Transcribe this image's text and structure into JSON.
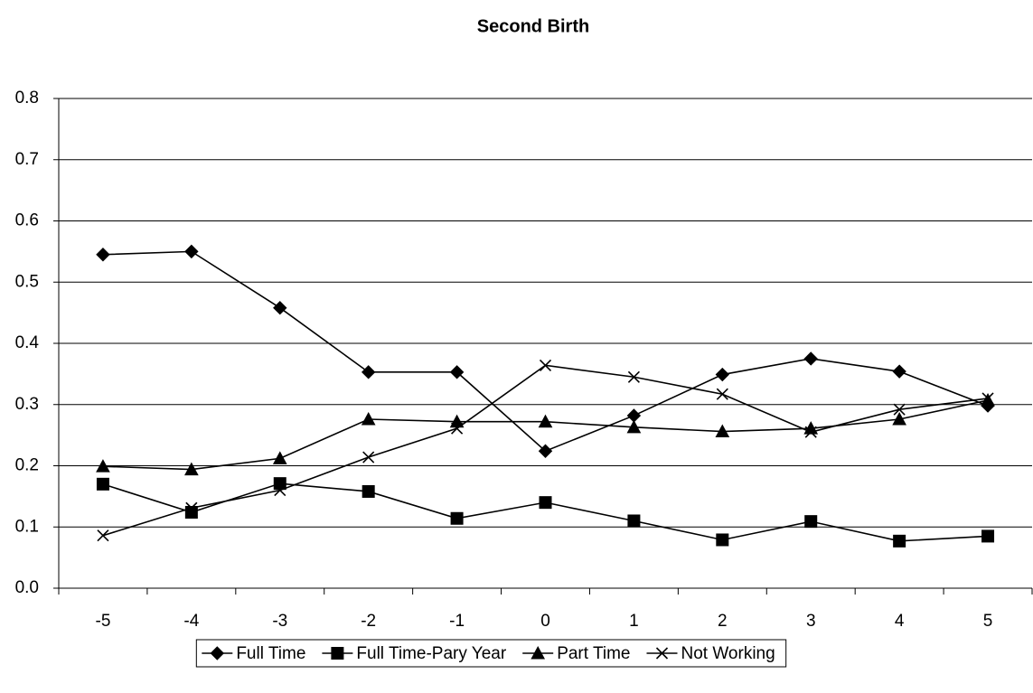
{
  "chart_data": {
    "type": "line",
    "title": "Second Birth",
    "categories": [
      "-5",
      "-4",
      "-3",
      "-2",
      "-1",
      "0",
      "1",
      "2",
      "3",
      "4",
      "5"
    ],
    "series": [
      {
        "name": "Full Time",
        "color": "#000000",
        "marker": "diamond",
        "values": [
          0.545,
          0.55,
          0.458,
          0.353,
          0.353,
          0.224,
          0.282,
          0.349,
          0.375,
          0.354,
          0.298
        ]
      },
      {
        "name": "Full Time-Pary Year",
        "color": "#000000",
        "marker": "square",
        "values": [
          0.17,
          0.124,
          0.171,
          0.158,
          0.114,
          0.14,
          0.11,
          0.079,
          0.109,
          0.077,
          0.085
        ]
      },
      {
        "name": "Part Time",
        "color": "#000000",
        "marker": "triangle",
        "values": [
          0.199,
          0.194,
          0.212,
          0.276,
          0.272,
          0.272,
          0.263,
          0.256,
          0.261,
          0.276,
          0.307
        ]
      },
      {
        "name": "Not Working",
        "color": "#000000",
        "marker": "cross",
        "values": [
          0.086,
          0.131,
          0.16,
          0.214,
          0.261,
          0.364,
          0.345,
          0.317,
          0.255,
          0.292,
          0.31
        ]
      }
    ],
    "ylim": [
      0,
      0.8
    ],
    "yticks": [
      {
        "value": 0,
        "label": "0.0"
      },
      0.1,
      0.2,
      0.3,
      0.4,
      0.5,
      0.6,
      0.7,
      0.8
    ],
    "grid": true,
    "legend": "bottom"
  }
}
